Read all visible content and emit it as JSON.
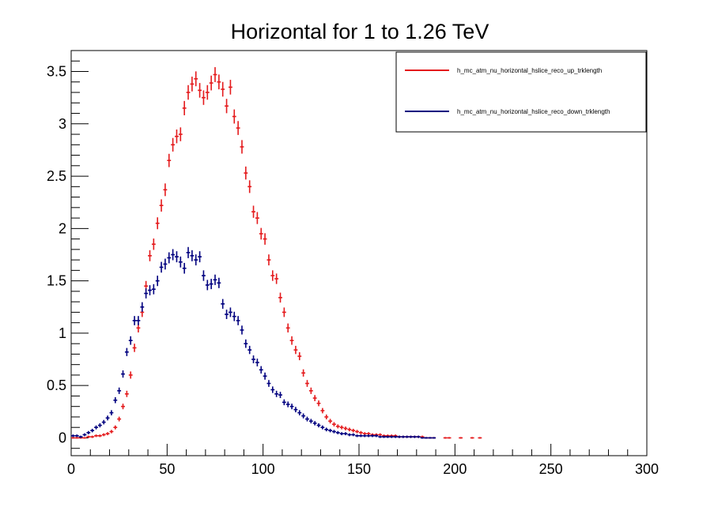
{
  "chart_data": {
    "type": "scatter",
    "title": "Horizontal for 1 to 1.26 TeV",
    "xlabel": "",
    "ylabel": "",
    "xlim": [
      0,
      300
    ],
    "ylim": [
      -0.17,
      3.7
    ],
    "x_ticks": [
      "0",
      "50",
      "100",
      "150",
      "200",
      "250",
      "300"
    ],
    "y_ticks": [
      "0",
      "0.5",
      "1",
      "1.5",
      "2",
      "2.5",
      "3",
      "3.5"
    ],
    "grid": false,
    "legend_position": "top-right",
    "series": [
      {
        "name": "h_mc_atm_nu_horizontal_hslice_reco_up_trklength",
        "color": "#e41a1c",
        "points": [
          [
            1,
            0.0
          ],
          [
            3,
            0.0
          ],
          [
            5,
            0.0
          ],
          [
            7,
            0.0
          ],
          [
            9,
            0.01
          ],
          [
            11,
            0.01
          ],
          [
            13,
            0.02
          ],
          [
            15,
            0.02
          ],
          [
            17,
            0.03
          ],
          [
            19,
            0.04
          ],
          [
            21,
            0.06
          ],
          [
            23,
            0.1
          ],
          [
            25,
            0.18
          ],
          [
            27,
            0.3
          ],
          [
            29,
            0.42
          ],
          [
            31,
            0.6
          ],
          [
            33,
            0.86
          ],
          [
            35,
            1.05
          ],
          [
            37,
            1.2
          ],
          [
            39,
            1.45
          ],
          [
            41,
            1.74
          ],
          [
            43,
            1.85
          ],
          [
            45,
            2.05
          ],
          [
            47,
            2.22
          ],
          [
            49,
            2.37
          ],
          [
            51,
            2.65
          ],
          [
            53,
            2.8
          ],
          [
            55,
            2.88
          ],
          [
            57,
            2.9
          ],
          [
            59,
            3.15
          ],
          [
            61,
            3.3
          ],
          [
            63,
            3.38
          ],
          [
            65,
            3.43
          ],
          [
            67,
            3.32
          ],
          [
            69,
            3.25
          ],
          [
            71,
            3.3
          ],
          [
            73,
            3.39
          ],
          [
            75,
            3.47
          ],
          [
            77,
            3.4
          ],
          [
            79,
            3.33
          ],
          [
            81,
            3.17
          ],
          [
            83,
            3.35
          ],
          [
            85,
            3.07
          ],
          [
            87,
            2.96
          ],
          [
            89,
            2.78
          ],
          [
            91,
            2.53
          ],
          [
            93,
            2.4
          ],
          [
            95,
            2.16
          ],
          [
            97,
            2.1
          ],
          [
            99,
            1.95
          ],
          [
            101,
            1.9
          ],
          [
            103,
            1.7
          ],
          [
            105,
            1.55
          ],
          [
            107,
            1.52
          ],
          [
            109,
            1.34
          ],
          [
            111,
            1.2
          ],
          [
            113,
            1.05
          ],
          [
            115,
            0.93
          ],
          [
            117,
            0.84
          ],
          [
            119,
            0.78
          ],
          [
            121,
            0.62
          ],
          [
            123,
            0.52
          ],
          [
            125,
            0.45
          ],
          [
            127,
            0.38
          ],
          [
            129,
            0.33
          ],
          [
            131,
            0.26
          ],
          [
            133,
            0.2
          ],
          [
            135,
            0.16
          ],
          [
            137,
            0.13
          ],
          [
            139,
            0.11
          ],
          [
            141,
            0.1
          ],
          [
            143,
            0.09
          ],
          [
            145,
            0.08
          ],
          [
            147,
            0.07
          ],
          [
            149,
            0.06
          ],
          [
            151,
            0.05
          ],
          [
            153,
            0.04
          ],
          [
            155,
            0.04
          ],
          [
            157,
            0.03
          ],
          [
            159,
            0.03
          ],
          [
            161,
            0.03
          ],
          [
            163,
            0.02
          ],
          [
            165,
            0.02
          ],
          [
            167,
            0.02
          ],
          [
            169,
            0.02
          ],
          [
            171,
            0.01
          ],
          [
            173,
            0.01
          ],
          [
            175,
            0.01
          ],
          [
            177,
            0.01
          ],
          [
            179,
            0.01
          ],
          [
            181,
            0.01
          ],
          [
            183,
            0.01
          ],
          [
            185,
            0.0
          ],
          [
            187,
            0.0
          ],
          [
            189,
            0.0
          ],
          [
            195,
            0.0
          ],
          [
            197,
            0.0
          ],
          [
            203,
            0.0
          ],
          [
            209,
            0.0
          ],
          [
            213,
            0.0
          ]
        ]
      },
      {
        "name": "h_mc_atm_nu_horizontal_hslice_reco_down_trklength",
        "color": "#00007f",
        "points": [
          [
            1,
            0.02
          ],
          [
            3,
            0.02
          ],
          [
            5,
            0.01
          ],
          [
            7,
            0.03
          ],
          [
            9,
            0.05
          ],
          [
            11,
            0.07
          ],
          [
            13,
            0.1
          ],
          [
            15,
            0.12
          ],
          [
            17,
            0.15
          ],
          [
            19,
            0.19
          ],
          [
            21,
            0.24
          ],
          [
            23,
            0.36
          ],
          [
            25,
            0.45
          ],
          [
            27,
            0.61
          ],
          [
            29,
            0.82
          ],
          [
            31,
            0.93
          ],
          [
            33,
            1.12
          ],
          [
            35,
            1.12
          ],
          [
            37,
            1.25
          ],
          [
            39,
            1.38
          ],
          [
            41,
            1.41
          ],
          [
            43,
            1.42
          ],
          [
            45,
            1.5
          ],
          [
            47,
            1.63
          ],
          [
            49,
            1.66
          ],
          [
            51,
            1.72
          ],
          [
            53,
            1.75
          ],
          [
            55,
            1.73
          ],
          [
            57,
            1.68
          ],
          [
            59,
            1.62
          ],
          [
            61,
            1.77
          ],
          [
            63,
            1.74
          ],
          [
            65,
            1.7
          ],
          [
            67,
            1.73
          ],
          [
            69,
            1.55
          ],
          [
            71,
            1.46
          ],
          [
            73,
            1.47
          ],
          [
            75,
            1.51
          ],
          [
            77,
            1.48
          ],
          [
            79,
            1.28
          ],
          [
            81,
            1.18
          ],
          [
            83,
            1.2
          ],
          [
            85,
            1.16
          ],
          [
            87,
            1.12
          ],
          [
            89,
            1.03
          ],
          [
            91,
            0.9
          ],
          [
            93,
            0.84
          ],
          [
            95,
            0.75
          ],
          [
            97,
            0.72
          ],
          [
            99,
            0.65
          ],
          [
            101,
            0.59
          ],
          [
            103,
            0.52
          ],
          [
            105,
            0.46
          ],
          [
            107,
            0.42
          ],
          [
            109,
            0.41
          ],
          [
            111,
            0.34
          ],
          [
            113,
            0.32
          ],
          [
            115,
            0.3
          ],
          [
            117,
            0.27
          ],
          [
            119,
            0.24
          ],
          [
            121,
            0.21
          ],
          [
            123,
            0.18
          ],
          [
            125,
            0.16
          ],
          [
            127,
            0.14
          ],
          [
            129,
            0.12
          ],
          [
            131,
            0.1
          ],
          [
            133,
            0.08
          ],
          [
            135,
            0.07
          ],
          [
            137,
            0.06
          ],
          [
            139,
            0.05
          ],
          [
            141,
            0.04
          ],
          [
            143,
            0.04
          ],
          [
            145,
            0.03
          ],
          [
            147,
            0.03
          ],
          [
            149,
            0.02
          ],
          [
            151,
            0.02
          ],
          [
            153,
            0.02
          ],
          [
            155,
            0.02
          ],
          [
            157,
            0.02
          ],
          [
            159,
            0.02
          ],
          [
            161,
            0.01
          ],
          [
            163,
            0.01
          ],
          [
            165,
            0.01
          ],
          [
            167,
            0.01
          ],
          [
            169,
            0.01
          ],
          [
            171,
            0.01
          ],
          [
            173,
            0.01
          ],
          [
            175,
            0.01
          ],
          [
            177,
            0.01
          ],
          [
            179,
            0.01
          ],
          [
            181,
            0.01
          ],
          [
            183,
            0.0
          ],
          [
            185,
            0.0
          ],
          [
            187,
            0.0
          ],
          [
            189,
            0.0
          ]
        ]
      }
    ]
  }
}
